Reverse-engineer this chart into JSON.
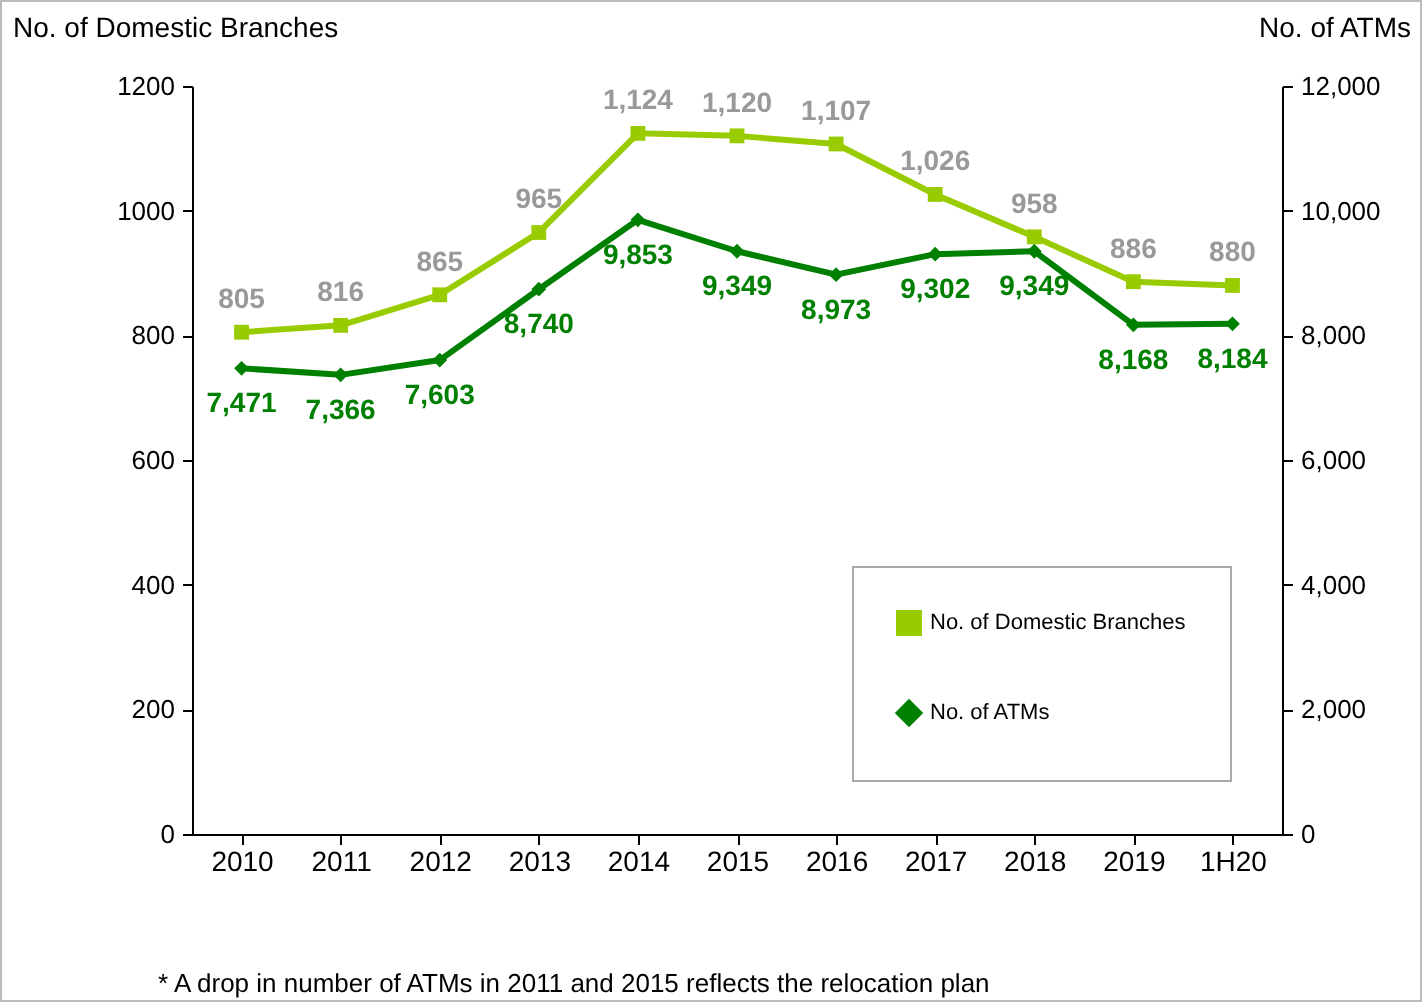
{
  "chart_data": {
    "type": "line",
    "categories": [
      "2010",
      "2011",
      "2012",
      "2013",
      "2014",
      "2015",
      "2016",
      "2017",
      "2018",
      "2019",
      "1H20"
    ],
    "series": [
      {
        "name": "No. of Domestic Branches",
        "color": "#99cc00",
        "marker": "square",
        "values": [
          805,
          816,
          865,
          965,
          1124,
          1120,
          1107,
          1026,
          958,
          886,
          880
        ],
        "value_labels": [
          "805",
          "816",
          "865",
          "965",
          "1,124",
          "1,120",
          "1,107",
          "1,026",
          "958",
          "886",
          "880"
        ]
      },
      {
        "name": "No. of ATMs",
        "color": "#008000",
        "marker": "diamond",
        "axis": "y2",
        "values": [
          7471,
          7366,
          7603,
          8740,
          9853,
          9349,
          8973,
          9302,
          9349,
          8168,
          8184
        ],
        "value_labels": [
          "7,471",
          "7,366",
          "7,603",
          "8,740",
          "9,853",
          "9,349",
          "8,973",
          "9,302",
          "9,349",
          "8,168",
          "8,184"
        ]
      }
    ],
    "ylabel": "No. of Domestic Branches",
    "y2label": "No. of ATMs",
    "ylim": [
      0,
      1200
    ],
    "yticks": [
      0,
      200,
      400,
      600,
      800,
      1000,
      1200
    ],
    "y2lim": [
      0,
      12000
    ],
    "y2ticks": [
      0,
      {
        "value": 2000,
        "label": "2,000"
      },
      {
        "value": 4000,
        "label": "4,000"
      },
      {
        "value": 6000,
        "label": "6,000"
      },
      {
        "value": 8000,
        "label": "8,000"
      },
      {
        "value": 10000,
        "label": "10,000"
      },
      {
        "value": 12000,
        "label": "12,000"
      }
    ],
    "legend": "bottom right",
    "grid": false,
    "annotations": [
      "* A  drop in number of ATMs in 2011 and 2015 reflects the relocation plan"
    ]
  }
}
